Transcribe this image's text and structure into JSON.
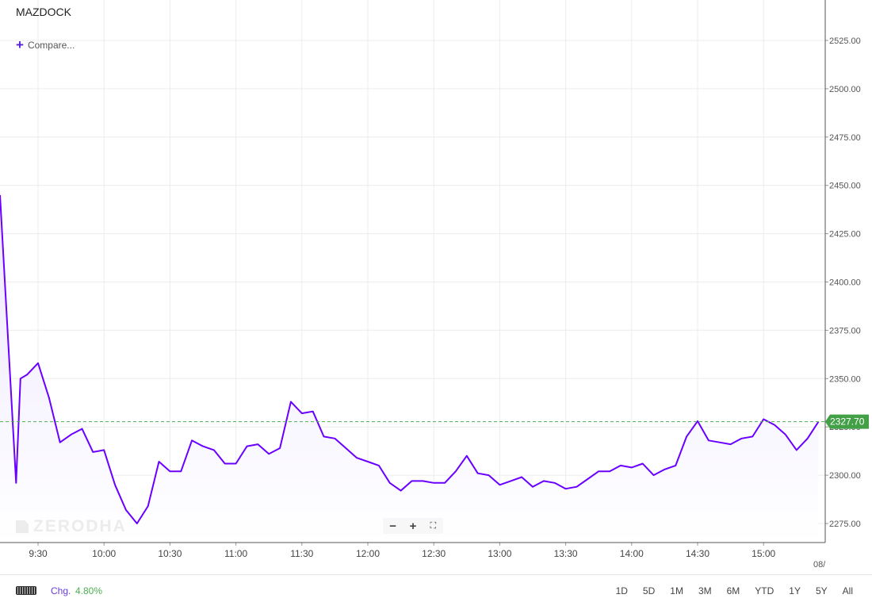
{
  "symbol": "MAZDOCK",
  "compare_label": "Compare...",
  "watermark": "ZERODHA",
  "date_stub": "08/",
  "colors": {
    "line": "#6a00ff",
    "area": "#ede7ff",
    "last_price_badge": "#43a047",
    "last_price_line": "#4caf50",
    "grid": "#ececec"
  },
  "zoom": {
    "out": "−",
    "in": "+",
    "fit": "⛶"
  },
  "footer": {
    "chg_label": "Chg.",
    "chg_value": "4.80%",
    "ranges": [
      "1D",
      "5D",
      "1M",
      "3M",
      "6M",
      "YTD",
      "1Y",
      "5Y",
      "All"
    ]
  },
  "chart_data": {
    "type": "area",
    "grid": true,
    "ylim": [
      2265,
      2540
    ],
    "yticks": [
      2275,
      2300,
      2325,
      2350,
      2375,
      2400,
      2425,
      2450,
      2475,
      2500,
      2525
    ],
    "ytick_labels": [
      "2275.00",
      "2300.00",
      "2325.00",
      "2350.00",
      "2375.00",
      "2400.00",
      "2425.00",
      "2450.00",
      "2475.00",
      "2500.00",
      "2525.00"
    ],
    "xticks": [
      "9:30",
      "10:00",
      "10:30",
      "11:00",
      "11:30",
      "12:00",
      "12:30",
      "13:00",
      "13:30",
      "14:00",
      "14:30",
      "15:00"
    ],
    "last_price": 2327.7,
    "last_price_label": "2327.70",
    "series": [
      {
        "x": [
          "9:15",
          "9:20",
          "9:22",
          "9:25",
          "9:30",
          "9:35",
          "9:40",
          "9:45",
          "9:50",
          "9:55",
          "10:00",
          "10:05",
          "10:10",
          "10:15",
          "10:20",
          "10:25",
          "10:30",
          "10:35",
          "10:40",
          "10:45",
          "10:50",
          "10:55",
          "11:00",
          "11:05",
          "11:10",
          "11:15",
          "11:20",
          "11:25",
          "11:30",
          "11:35",
          "11:40",
          "11:45",
          "11:50",
          "11:55",
          "12:00",
          "12:05",
          "12:10",
          "12:15",
          "12:20",
          "12:25",
          "12:30",
          "12:35",
          "12:40",
          "12:45",
          "12:50",
          "12:55",
          "13:00",
          "13:05",
          "13:10",
          "13:15",
          "13:20",
          "13:25",
          "13:30",
          "13:35",
          "13:40",
          "13:45",
          "13:50",
          "13:55",
          "14:00",
          "14:05",
          "14:10",
          "14:15",
          "14:20",
          "14:25",
          "14:30",
          "14:35",
          "14:40",
          "14:45",
          "14:50",
          "14:55",
          "15:00",
          "15:05",
          "15:10",
          "15:15",
          "15:20",
          "15:25"
        ],
        "values": [
          2445,
          2296,
          2350,
          2352,
          2358,
          2340,
          2317,
          2321,
          2324,
          2312,
          2313,
          2295,
          2282,
          2275,
          2284,
          2307,
          2302,
          2302,
          2318,
          2315,
          2313,
          2306,
          2306,
          2315,
          2316,
          2311,
          2314,
          2338,
          2332,
          2333,
          2320,
          2319,
          2314,
          2309,
          2307,
          2305,
          2296,
          2292,
          2297,
          2297,
          2296,
          2296,
          2302,
          2310,
          2301,
          2300,
          2295,
          2297,
          2299,
          2294,
          2297,
          2296,
          2293,
          2294,
          2298,
          2302,
          2302,
          2305,
          2304,
          2306,
          2300,
          2303,
          2305,
          2320,
          2328,
          2318,
          2317,
          2316,
          2319,
          2320,
          2329,
          2326,
          2321,
          2313,
          2319,
          2327.7
        ]
      }
    ]
  }
}
